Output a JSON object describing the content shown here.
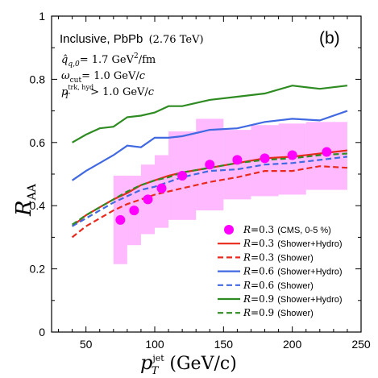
{
  "chart_data": {
    "type": "line",
    "xlabel_main": "p",
    "xlabel_sub": "T",
    "xlabel_sup": "jet",
    "xlabel_units": "(GeV/c)",
    "ylabel_main": "R",
    "ylabel_sub": "AA",
    "xlim": [
      25,
      250
    ],
    "ylim": [
      0,
      1
    ],
    "xticks": [
      50,
      100,
      150,
      200,
      250
    ],
    "yticks": [
      0,
      0.2,
      0.4,
      0.6,
      0.8,
      1
    ],
    "xtick_labels": [
      "50",
      "100",
      "150",
      "200",
      "250"
    ],
    "ytick_labels": [
      "0",
      "0.2",
      "0.4",
      "0.6",
      "0.8",
      "1"
    ],
    "grid": false,
    "panel_label": "(b)",
    "annotation": {
      "line1": "Inclusive, PbPb",
      "line1_energy": "(2.76 TeV)",
      "qhat_sym": "q̂",
      "qhat_sub": "q,0",
      "qhat_val": "= 1.7 GeV",
      "qhat_sup": "2",
      "qhat_unit": "/fm",
      "omega_sym": "ω",
      "omega_sub": "cut",
      "omega_val": "= 1.0 GeV/",
      "omega_c": "c",
      "pt_sym": "p",
      "pt_sup": "trk, hyd",
      "pt_sub": "T",
      "pt_val": "> 1.0 GeV/",
      "pt_c": "c"
    },
    "cms": {
      "label_R": "R",
      "label_eq": "=0.3",
      "label_note": "(CMS, 0-5 %)",
      "color": "#ff00ff",
      "box_color": "#ff66ff",
      "points": [
        {
          "x": 75,
          "y": 0.355,
          "x_lo": 70,
          "x_hi": 80,
          "y_lo": 0.215,
          "y_hi": 0.495
        },
        {
          "x": 85,
          "y": 0.385,
          "x_lo": 80,
          "x_hi": 90,
          "y_lo": 0.275,
          "y_hi": 0.495
        },
        {
          "x": 95,
          "y": 0.42,
          "x_lo": 90,
          "x_hi": 100,
          "y_lo": 0.31,
          "y_hi": 0.53
        },
        {
          "x": 105,
          "y": 0.455,
          "x_lo": 100,
          "x_hi": 110,
          "y_lo": 0.33,
          "y_hi": 0.56
        },
        {
          "x": 120,
          "y": 0.495,
          "x_lo": 110,
          "x_hi": 130,
          "y_lo": 0.355,
          "y_hi": 0.635
        },
        {
          "x": 140,
          "y": 0.53,
          "x_lo": 130,
          "x_hi": 150,
          "y_lo": 0.385,
          "y_hi": 0.675
        },
        {
          "x": 160,
          "y": 0.545,
          "x_lo": 150,
          "x_hi": 170,
          "y_lo": 0.42,
          "y_hi": 0.64
        },
        {
          "x": 180,
          "y": 0.55,
          "x_lo": 170,
          "x_hi": 190,
          "y_lo": 0.43,
          "y_hi": 0.655
        },
        {
          "x": 200,
          "y": 0.56,
          "x_lo": 190,
          "x_hi": 210,
          "y_lo": 0.435,
          "y_hi": 0.66
        },
        {
          "x": 225,
          "y": 0.57,
          "x_lo": 210,
          "x_hi": 240,
          "y_lo": 0.45,
          "y_hi": 0.665
        }
      ]
    },
    "x": [
      40,
      50,
      60,
      70,
      80,
      90,
      100,
      110,
      120,
      140,
      160,
      180,
      200,
      220,
      240
    ],
    "series": [
      {
        "name_R": "R",
        "name_eq": "=0.3",
        "name_note": "(Shower+Hydro)",
        "color": "#e8291c",
        "dashed": false,
        "values": [
          0.335,
          0.37,
          0.395,
          0.42,
          0.44,
          0.465,
          0.48,
          0.495,
          0.505,
          0.52,
          0.535,
          0.55,
          0.555,
          0.565,
          0.575
        ]
      },
      {
        "name_R": "R",
        "name_eq": "=0.3",
        "name_note": "(Shower)",
        "color": "#e8291c",
        "dashed": true,
        "values": [
          0.3,
          0.335,
          0.36,
          0.385,
          0.405,
          0.42,
          0.435,
          0.445,
          0.455,
          0.475,
          0.49,
          0.51,
          0.51,
          0.525,
          0.52
        ]
      },
      {
        "name_R": "R",
        "name_eq": "=0.6",
        "name_note": "(Shower+Hydro)",
        "color": "#4169e1",
        "dashed": false,
        "values": [
          0.48,
          0.51,
          0.535,
          0.56,
          0.59,
          0.585,
          0.615,
          0.615,
          0.62,
          0.64,
          0.645,
          0.665,
          0.675,
          0.67,
          0.7
        ]
      },
      {
        "name_R": "R",
        "name_eq": "=0.6",
        "name_note": "(Shower)",
        "color": "#4169e1",
        "dashed": true,
        "values": [
          0.335,
          0.36,
          0.385,
          0.41,
          0.43,
          0.45,
          0.46,
          0.475,
          0.49,
          0.51,
          0.515,
          0.53,
          0.535,
          0.545,
          0.555
        ]
      },
      {
        "name_R": "R",
        "name_eq": "=0.9",
        "name_note": "(Shower+Hydro)",
        "color": "#2e8b22",
        "dashed": false,
        "values": [
          0.6,
          0.625,
          0.645,
          0.65,
          0.68,
          0.685,
          0.695,
          0.715,
          0.715,
          0.735,
          0.745,
          0.755,
          0.78,
          0.77,
          0.78
        ]
      },
      {
        "name_R": "R",
        "name_eq": "=0.9",
        "name_note": "(Shower)",
        "color": "#2e8b22",
        "dashed": true,
        "values": [
          0.34,
          0.37,
          0.395,
          0.42,
          0.445,
          0.465,
          0.48,
          0.49,
          0.505,
          0.52,
          0.535,
          0.545,
          0.55,
          0.56,
          0.565
        ]
      }
    ]
  }
}
